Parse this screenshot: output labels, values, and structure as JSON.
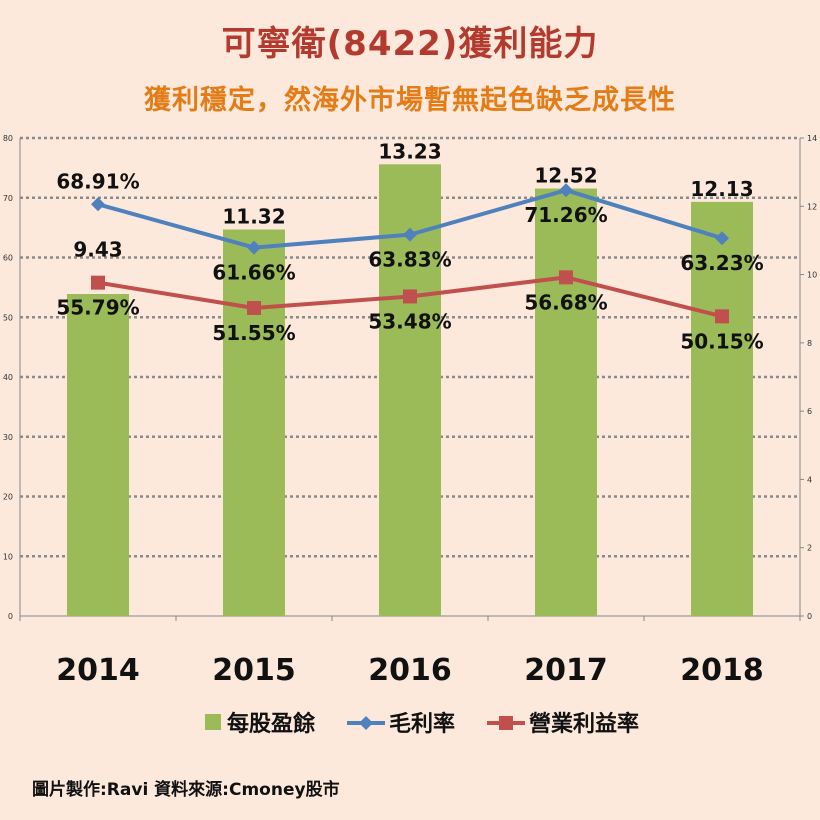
{
  "header": {
    "title": "可寧衛(8422)獲利能力",
    "subtitle": "獲利穩定，然海外市場暫無起色缺乏成長性"
  },
  "footer": {
    "credit": "圖片製作:Ravi   資料來源:Cmoney股市"
  },
  "colors": {
    "background": "#fce9dc",
    "title": "#b23a2e",
    "subtitle": "#e37c16",
    "bar": "#9bbb59",
    "gross": "#4f81bd",
    "operating": "#c0504d"
  },
  "chart_data": {
    "type": "bar+line",
    "categories": [
      "2014",
      "2015",
      "2016",
      "2017",
      "2018"
    ],
    "series": [
      {
        "name": "每股盈餘",
        "type": "bar",
        "axis": "right",
        "values": [
          9.43,
          11.32,
          13.23,
          12.52,
          12.13
        ],
        "labels": [
          "9.43",
          "11.32",
          "13.23",
          "12.52",
          "12.13"
        ]
      },
      {
        "name": "毛利率",
        "type": "line",
        "axis": "left",
        "marker": "diamond",
        "values": [
          68.91,
          61.66,
          63.83,
          71.26,
          63.23
        ],
        "labels": [
          "68.91%",
          "61.66%",
          "63.83%",
          "71.26%",
          "63.23%"
        ]
      },
      {
        "name": "營業利益率",
        "type": "line",
        "axis": "left",
        "marker": "square",
        "values": [
          55.79,
          51.55,
          53.48,
          56.68,
          50.15
        ],
        "labels": [
          "55.79%",
          "51.55%",
          "53.48%",
          "56.68%",
          "50.15%"
        ]
      }
    ],
    "left_axis": {
      "min": 0,
      "max": 80,
      "ticks": [
        "0",
        "10",
        "20",
        "30",
        "40",
        "50",
        "60",
        "70",
        "80"
      ]
    },
    "right_axis": {
      "min": 0,
      "max": 14,
      "ticks": [
        "0",
        "2",
        "4",
        "6",
        "8",
        "10",
        "12",
        "14"
      ]
    },
    "grid": "dotted-horizontal",
    "legend_position": "bottom"
  }
}
